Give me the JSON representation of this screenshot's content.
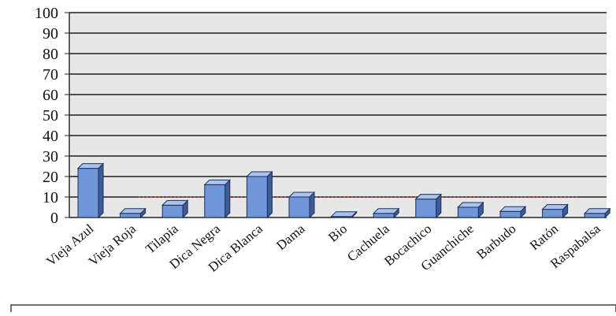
{
  "chart_data": {
    "type": "bar",
    "categories": [
      "Vieja Azul",
      "Vieja Roja",
      "Tilapia",
      "Dica Negra",
      "Dica Blanca",
      "Dama",
      "Bio",
      "Cachuela",
      "Bocachico",
      "Guanchiche",
      "Barbudo",
      "Ratón",
      "Raspabalsa"
    ],
    "values": [
      24,
      2,
      6,
      16,
      20,
      10,
      0.5,
      2,
      9,
      5,
      3,
      4,
      2
    ],
    "ylim": [
      0,
      100
    ],
    "yticks": [
      0,
      10,
      20,
      30,
      40,
      50,
      60,
      70,
      80,
      90,
      100
    ],
    "grid": true,
    "reference_line": 10,
    "title": "",
    "xlabel": "",
    "ylabel": ""
  },
  "colors": {
    "bar_front": "#6f96d8",
    "bar_side": "#3d5c99",
    "bar_top": "#a9c2ee",
    "plot_bg": "#e7e7e7",
    "gridline": "#1e1e1e",
    "reference_line": "#d23a3a"
  }
}
